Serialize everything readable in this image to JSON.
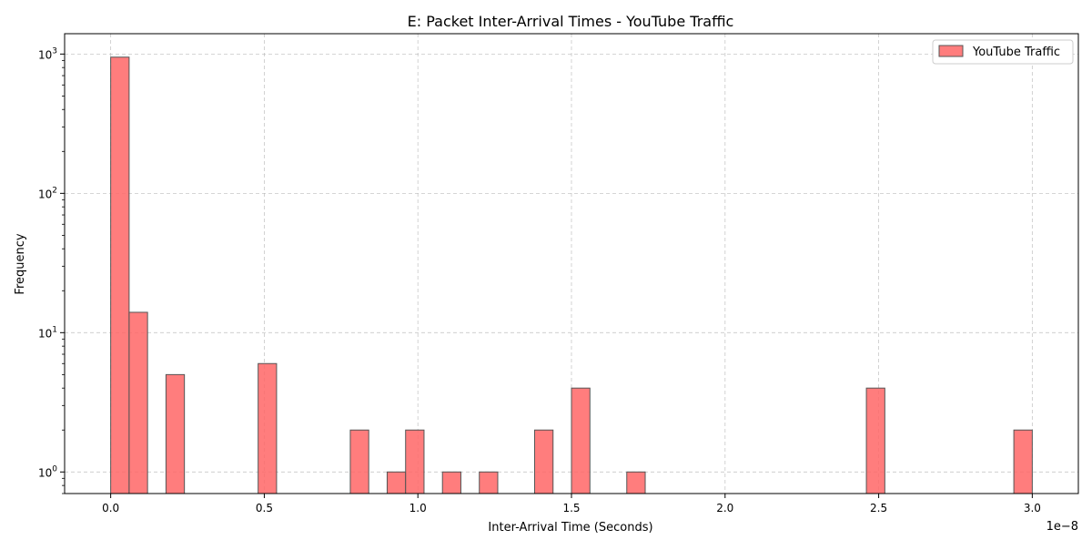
{
  "chart_data": {
    "type": "bar",
    "title": "E: Packet Inter-Arrival Times - YouTube Traffic",
    "xlabel": "Inter-Arrival Time (Seconds)",
    "ylabel": "Frequency",
    "x_offset_label": "1e−8",
    "x_scale_factor": 1e-08,
    "xlim": [
      -0.15,
      3.15
    ],
    "ylim": [
      0.7,
      1400
    ],
    "yscale": "log",
    "grid": true,
    "legend": "upper right",
    "x_ticks": [
      0.0,
      0.5,
      1.0,
      1.5,
      2.0,
      2.5,
      3.0
    ],
    "x_tick_labels": [
      "0.0",
      "0.5",
      "1.0",
      "1.5",
      "2.0",
      "2.5",
      "3.0"
    ],
    "y_ticks": [
      1,
      10,
      100,
      1000
    ],
    "y_tick_labels": [
      {
        "base": "10",
        "exp": "0"
      },
      {
        "base": "10",
        "exp": "1"
      },
      {
        "base": "10",
        "exp": "2"
      },
      {
        "base": "10",
        "exp": "3"
      }
    ],
    "bin_width": 0.06,
    "series": [
      {
        "name": "YouTube Traffic",
        "color": "#ff6666",
        "edgecolor": "#555555",
        "bins": [
          {
            "x0": 0.0,
            "count": 950
          },
          {
            "x0": 0.06,
            "count": 14
          },
          {
            "x0": 0.18,
            "count": 5
          },
          {
            "x0": 0.48,
            "count": 6
          },
          {
            "x0": 0.78,
            "count": 2
          },
          {
            "x0": 0.9,
            "count": 1
          },
          {
            "x0": 0.96,
            "count": 2
          },
          {
            "x0": 1.08,
            "count": 1
          },
          {
            "x0": 1.2,
            "count": 1
          },
          {
            "x0": 1.38,
            "count": 2
          },
          {
            "x0": 1.5,
            "count": 4
          },
          {
            "x0": 1.68,
            "count": 1
          },
          {
            "x0": 2.46,
            "count": 4
          },
          {
            "x0": 2.94,
            "count": 2
          }
        ]
      }
    ]
  }
}
